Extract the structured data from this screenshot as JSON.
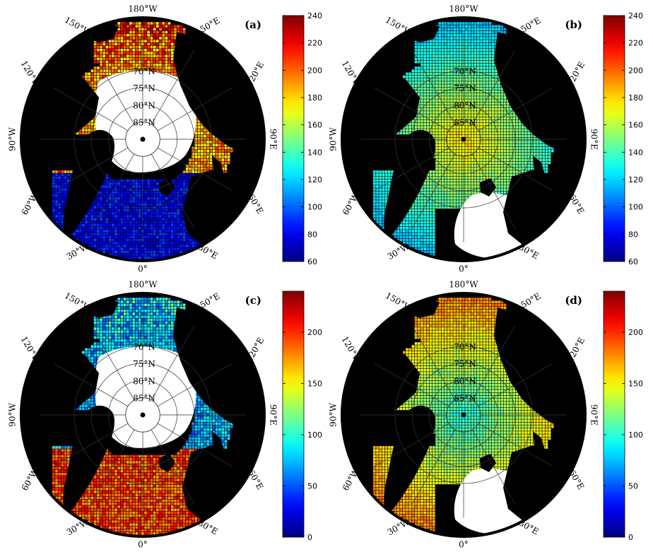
{
  "figure": {
    "panels": [
      {
        "id": "a",
        "label": "(a)",
        "colorbar": {
          "min": 60,
          "max": 240,
          "ticks": [
            240,
            220,
            200,
            180,
            160,
            140,
            120,
            100,
            80,
            60
          ]
        },
        "pattern": "open"
      },
      {
        "id": "b",
        "label": "(b)",
        "colorbar": {
          "min": 60,
          "max": 240,
          "ticks": [
            240,
            220,
            200,
            180,
            160,
            140,
            120,
            100,
            80,
            60
          ]
        },
        "pattern": "ice"
      },
      {
        "id": "c",
        "label": "(c)",
        "colorbar": {
          "min": 0,
          "max": 240,
          "ticks": [
            200,
            150,
            100,
            50,
            0
          ]
        },
        "pattern": "open-warm"
      },
      {
        "id": "d",
        "label": "(d)",
        "colorbar": {
          "min": 0,
          "max": 240,
          "ticks": [
            200,
            150,
            100,
            50,
            0
          ]
        },
        "pattern": "ice-cool"
      }
    ],
    "meridian_labels": [
      {
        "text": "180°W",
        "angle": 180
      },
      {
        "text": "150°W",
        "angle": 150
      },
      {
        "text": "150°E",
        "angle": 210
      },
      {
        "text": "120°W",
        "angle": 120
      },
      {
        "text": "120°E",
        "angle": 240
      },
      {
        "text": "90°W",
        "angle": 90
      },
      {
        "text": "90°E",
        "angle": 270
      },
      {
        "text": "60°W",
        "angle": 60
      },
      {
        "text": "60°E",
        "angle": 300
      },
      {
        "text": "30°W",
        "angle": 30
      },
      {
        "text": "30°E",
        "angle": 330
      },
      {
        "text": "0°",
        "angle": 0
      }
    ],
    "parallel_labels": [
      "70°N",
      "75°N",
      "80°N",
      "85°N"
    ]
  }
}
